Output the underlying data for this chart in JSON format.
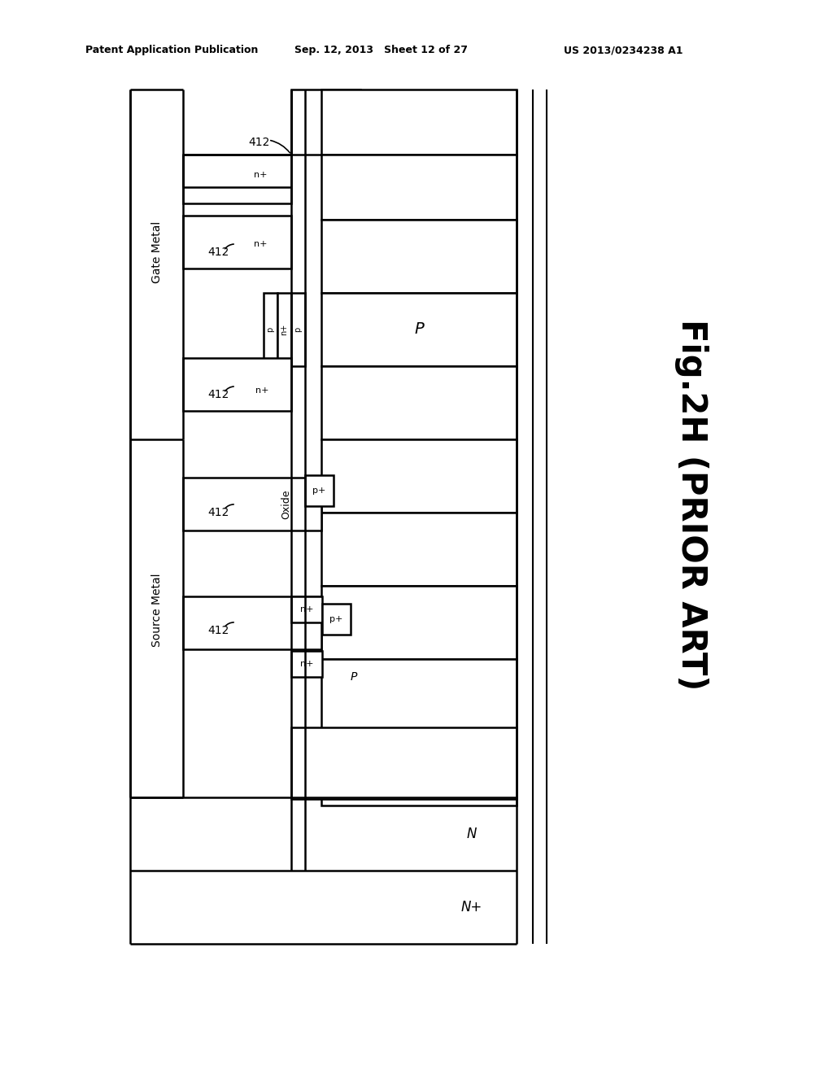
{
  "bg_color": "#ffffff",
  "line_color": "#000000",
  "header_left": "Patent Application Publication",
  "header_mid": "Sep. 12, 2013   Sheet 12 of 27",
  "header_right": "US 2013/0234238 A1",
  "fig_label": "Fig.2H (PRIOR ART)"
}
